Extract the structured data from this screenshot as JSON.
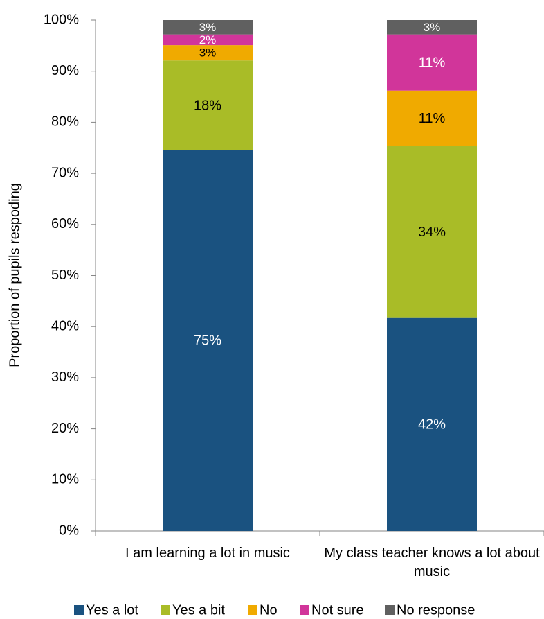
{
  "chart_data": {
    "type": "stacked_bar",
    "y_axis_label": "Proportion of pupils respoding",
    "categories": [
      "I am learning a lot in music",
      "My class teacher knows a lot about music"
    ],
    "series": [
      {
        "name": "Yes a lot",
        "color": "#1a5280",
        "values": [
          74.5,
          41.7
        ],
        "value_labels": [
          "75%",
          "42%"
        ]
      },
      {
        "name": "Yes a bit",
        "color": "#a9bc27",
        "values": [
          17.6,
          33.7
        ],
        "value_labels": [
          "18%",
          "34%"
        ]
      },
      {
        "name": "No",
        "color": "#f0aa00",
        "values": [
          3.0,
          10.8
        ],
        "value_labels": [
          "3%",
          "11%"
        ]
      },
      {
        "name": "Not sure",
        "color": "#d1359a",
        "values": [
          2.1,
          11.0
        ],
        "value_labels": [
          "2%",
          "11%"
        ]
      },
      {
        "name": "No response",
        "color": "#606060",
        "values": [
          2.8,
          2.8
        ],
        "value_labels": [
          "3%",
          "3%"
        ]
      }
    ],
    "ylim": [
      0,
      100
    ],
    "yticks": [
      {
        "value": 0,
        "label": "0%"
      },
      {
        "value": 10,
        "label": "10%"
      },
      {
        "value": 20,
        "label": "20%"
      },
      {
        "value": 30,
        "label": "30%"
      },
      {
        "value": 40,
        "label": "40%"
      },
      {
        "value": 50,
        "label": "50%"
      },
      {
        "value": 60,
        "label": "60%"
      },
      {
        "value": 70,
        "label": "70%"
      },
      {
        "value": 80,
        "label": "80%"
      },
      {
        "value": 90,
        "label": "90%"
      },
      {
        "value": 100,
        "label": "100%"
      }
    ],
    "legend": "bottom"
  }
}
